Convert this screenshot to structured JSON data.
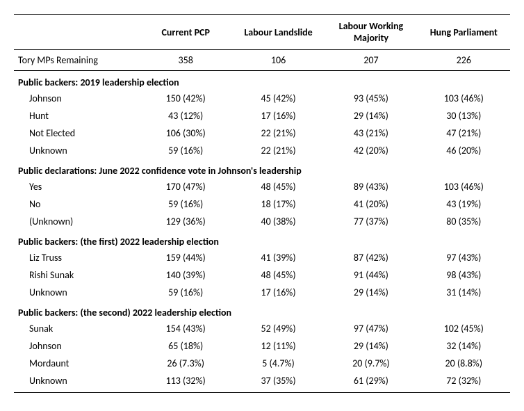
{
  "columns": [
    "Current PCP",
    "Labour Landslide",
    "Labour Working Majority",
    "Hung Parliament"
  ],
  "tory_label": "Tory MPs Remaining",
  "tory_values": [
    "358",
    "106",
    "207",
    "226"
  ],
  "sections": [
    {
      "title": "Public backers: 2019 leadership election",
      "rows": [
        {
          "label": "Johnson",
          "cells": [
            "150 (42%)",
            "45 (42%)",
            "93 (45%)",
            "103 (46%)"
          ]
        },
        {
          "label": "Hunt",
          "cells": [
            "43 (12%)",
            "17 (16%)",
            "29 (14%)",
            "30 (13%)"
          ]
        },
        {
          "label": "Not Elected",
          "cells": [
            "106 (30%)",
            "22 (21%)",
            "43 (21%)",
            "47 (21%)"
          ]
        },
        {
          "label": "Unknown",
          "cells": [
            "59 (16%)",
            "22 (21%)",
            "42 (20%)",
            "46 (20%)"
          ]
        }
      ]
    },
    {
      "title": "Public declarations: June 2022 confidence vote in Johnson's leadership",
      "rows": [
        {
          "label": "Yes",
          "cells": [
            "170 (47%)",
            "48 (45%)",
            "89 (43%)",
            "103 (46%)"
          ]
        },
        {
          "label": "No",
          "cells": [
            "59 (16%)",
            "18 (17%)",
            "41 (20%)",
            "43 (19%)"
          ]
        },
        {
          "label": "(Unknown)",
          "cells": [
            "129 (36%)",
            "40 (38%)",
            "77 (37%)",
            "80 (35%)"
          ]
        }
      ]
    },
    {
      "title": "Public backers: (the first) 2022 leadership election",
      "rows": [
        {
          "label": "Liz Truss",
          "cells": [
            "159 (44%)",
            "41 (39%)",
            "87 (42%)",
            "97 (43%)"
          ]
        },
        {
          "label": "Rishi Sunak",
          "cells": [
            "140 (39%)",
            "48 (45%)",
            "91 (44%)",
            "98 (43%)"
          ]
        },
        {
          "label": "Unknown",
          "cells": [
            "59 (16%)",
            "17 (16%)",
            "29 (14%)",
            "31 (14%)"
          ]
        }
      ]
    },
    {
      "title": "Public backers: (the second) 2022 leadership election",
      "rows": [
        {
          "label": "Sunak",
          "cells": [
            "154 (43%)",
            "52 (49%)",
            "97 (47%)",
            "102 (45%)"
          ]
        },
        {
          "label": "Johnson",
          "cells": [
            "65 (18%)",
            "12 (11%)",
            "29 (14%)",
            "32 (14%)"
          ]
        },
        {
          "label": "Mordaunt",
          "cells": [
            "26 (7.3%)",
            "5 (4.7%)",
            "20 (9.7%)",
            "20 (8.8%)"
          ]
        },
        {
          "label": "Unknown",
          "cells": [
            "113 (32%)",
            "37 (35%)",
            "61 (29%)",
            "72 (32%)"
          ]
        }
      ]
    }
  ]
}
